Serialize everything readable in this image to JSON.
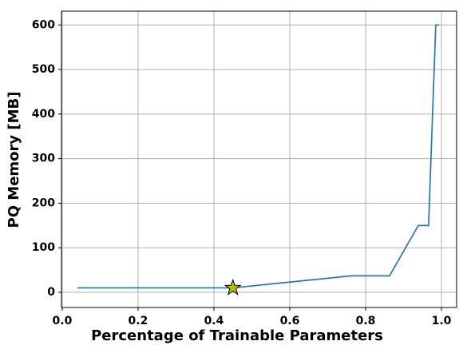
{
  "chart_data": {
    "type": "line",
    "xlabel": "Percentage of Trainable Parameters",
    "ylabel": "PQ Memory [MB]",
    "series": [
      {
        "color": "#1f77b4",
        "x": [
          0.04,
          0.45,
          0.762,
          0.863,
          0.939,
          0.966,
          0.985,
          0.994
        ],
        "values": [
          10,
          10,
          37,
          37,
          150,
          150,
          600,
          600
        ]
      },
      {
        "color": "#bfbf00",
        "marker": "star",
        "x": [
          0.45
        ],
        "values": [
          10
        ]
      }
    ],
    "xlim": [
      -0.002,
      1.04
    ],
    "ylim": [
      -34,
      631
    ],
    "xticks": [
      {
        "value": 0,
        "label": "0.0"
      },
      0.2,
      0.4,
      0.6,
      0.8,
      {
        "value": 1,
        "label": "1.0"
      }
    ],
    "yticks": [
      0,
      100,
      200,
      300,
      400,
      500,
      600
    ],
    "grid": true
  }
}
